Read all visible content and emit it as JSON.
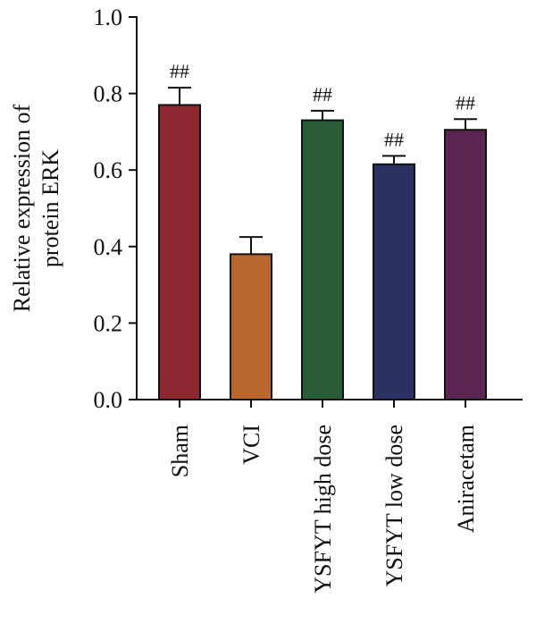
{
  "chart_data": {
    "type": "bar",
    "categories": [
      "Sham",
      "VCI",
      "YSFYT high dose",
      "YSFYT low dose",
      "Aniracetam"
    ],
    "values": [
      0.77,
      0.38,
      0.73,
      0.615,
      0.705
    ],
    "errors": [
      0.045,
      0.045,
      0.025,
      0.022,
      0.028
    ],
    "significance": [
      "##",
      "",
      "##",
      "##",
      "##"
    ],
    "colors": [
      "#8e2730",
      "#b9672f",
      "#2a5c35",
      "#2b3262",
      "#5b2652"
    ],
    "title": "",
    "xlabel": "",
    "ylabel_lines": [
      "Relative expression of",
      "protein ERK"
    ],
    "ylim": [
      0,
      1.0
    ],
    "yticks": [
      "0.0",
      "0.2",
      "0.4",
      "0.6",
      "0.8",
      "1.0"
    ],
    "grid": false,
    "legend": "none"
  }
}
